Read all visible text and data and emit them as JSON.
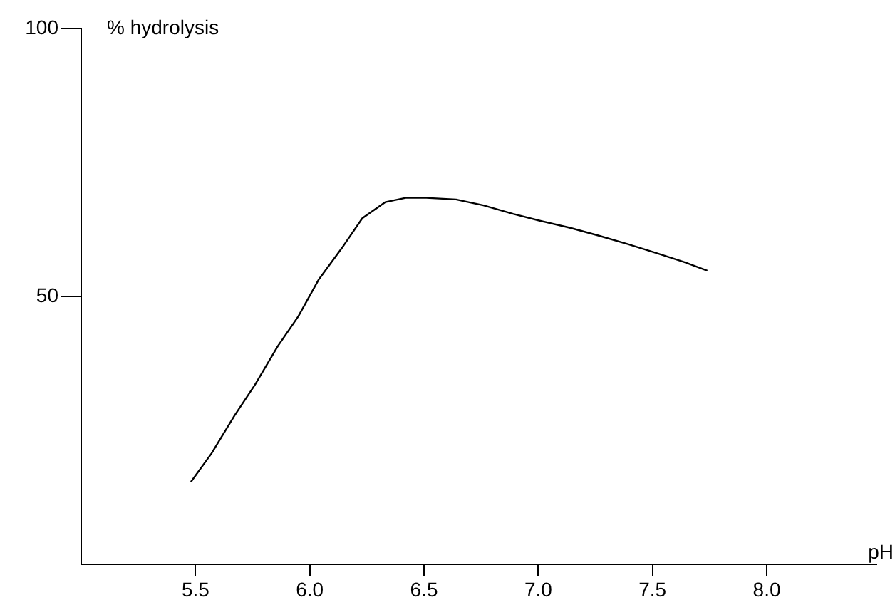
{
  "chart_data": {
    "type": "line",
    "xlabel": "pH",
    "ylabel": "% hydrolysis",
    "x": [
      5.48,
      5.57,
      5.67,
      5.76,
      5.86,
      5.95,
      6.04,
      6.14,
      6.23,
      6.33,
      6.42,
      6.51,
      6.64,
      6.76,
      6.89,
      7.01,
      7.14,
      7.26,
      7.39,
      7.51,
      7.64,
      7.74
    ],
    "series": [
      {
        "color": "#000000",
        "values": [
          15.4,
          20.7,
          27.7,
          33.5,
          40.7,
          46.3,
          53.2,
          59,
          64.6,
          67.6,
          68.4,
          68.4,
          68.1,
          67,
          65.4,
          64.1,
          62.8,
          61.4,
          59.8,
          58.2,
          56.4,
          54.8
        ]
      }
    ],
    "xlim": [
      5,
      8.48
    ],
    "xticks": [
      5.5,
      {
        "value": 6,
        "label": "6.0"
      },
      6.5,
      {
        "value": 7,
        "label": "7.0"
      },
      7.5,
      {
        "value": 8,
        "label": "8.0"
      }
    ],
    "ylim": [
      0,
      100
    ],
    "yticks": [
      50,
      100
    ],
    "grid": false,
    "legend": false,
    "marker": "none",
    "line_style": "solid"
  }
}
